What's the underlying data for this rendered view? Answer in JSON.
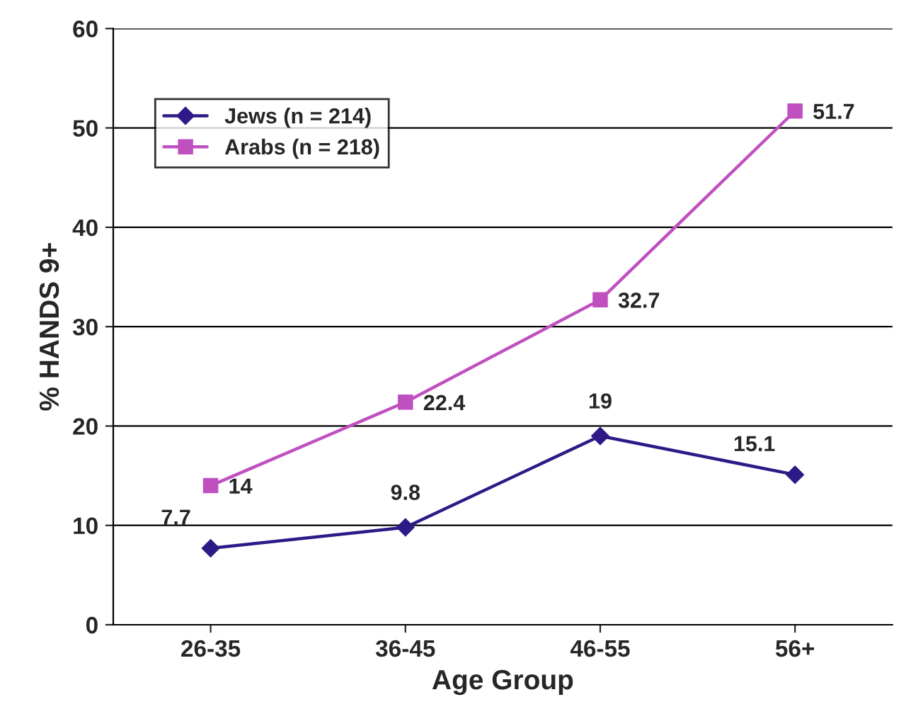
{
  "chart_data": {
    "type": "line",
    "xlabel": "Age Group",
    "ylabel": "% HANDS 9+",
    "categories": [
      "26-35",
      "36-45",
      "46-55",
      "56+"
    ],
    "series": [
      {
        "name": "Jews (n = 214)",
        "color": "#2e1a87",
        "marker": "diamond",
        "values": [
          7.7,
          9.8,
          19,
          15.1
        ]
      },
      {
        "name": "Arabs (n = 218)",
        "color": "#c050c0",
        "marker": "square",
        "values": [
          14,
          22.4,
          32.7,
          51.7
        ]
      }
    ],
    "ylim": [
      0,
      60
    ],
    "yticks": [
      0,
      10,
      20,
      30,
      40,
      50,
      60
    ],
    "grid": "y",
    "legend": "top left",
    "data_labels": true,
    "line_style": "solid"
  }
}
